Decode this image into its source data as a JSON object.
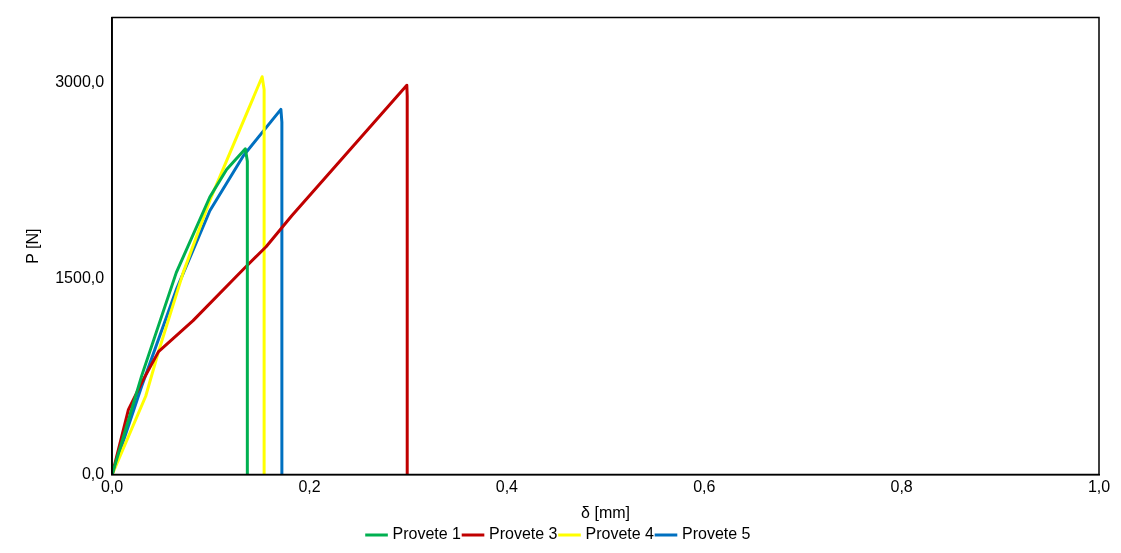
{
  "chart_data": {
    "type": "line",
    "xlabel": "δ [mm]",
    "ylabel": "P [N]",
    "xlim": [
      0,
      1
    ],
    "xticks": [
      {
        "value": 0,
        "label": "0,0"
      },
      {
        "value": 0.2,
        "label": "0,2"
      },
      {
        "value": 0.4,
        "label": "0,4"
      },
      {
        "value": 0.6,
        "label": "0,6"
      },
      {
        "value": 0.8,
        "label": "0,8"
      },
      {
        "value": 1,
        "label": "1,0"
      }
    ],
    "ylim": [
      0,
      3500
    ],
    "yticks": [
      {
        "value": 0,
        "label": "0,0"
      },
      {
        "value": 1500,
        "label": "1500,0"
      },
      {
        "value": 3000,
        "label": "3000,0"
      }
    ],
    "grid": false,
    "legend": "bottom",
    "marker": "none",
    "line_style": "solid",
    "series": [
      {
        "name": "Provete 1",
        "color": "#00b050",
        "x": [
          0,
          0.03,
          0.065,
          0.099,
          0.116,
          0.135,
          0.137,
          0.137
        ],
        "values": [
          0,
          758,
          1547,
          2126,
          2337,
          2495,
          2400,
          0
        ]
      },
      {
        "name": "Provete 3",
        "color": "#c00000",
        "x": [
          0,
          0.0165,
          0.03,
          0.047,
          0.082,
          0.133,
          0.156,
          0.182,
          0.2986,
          0.299,
          0.299
        ],
        "values": [
          0,
          497,
          705,
          942,
          1179,
          1573,
          1745,
          1982,
          2982,
          2900,
          0
        ]
      },
      {
        "name": "Provete 4",
        "color": "#ffff00",
        "x": [
          0,
          0.034,
          0.047,
          0.072,
          0.099,
          0.127,
          0.152,
          0.154,
          0.154
        ],
        "values": [
          0,
          600,
          942,
          1547,
          2100,
          2600,
          3047,
          2950,
          0
        ]
      },
      {
        "name": "Provete 5",
        "color": "#0070c0",
        "x": [
          0,
          0.03,
          0.065,
          0.099,
          0.133,
          0.171,
          0.172,
          0.172
        ],
        "values": [
          0,
          679,
          1416,
          2021,
          2442,
          2797,
          2700,
          0
        ]
      }
    ]
  }
}
